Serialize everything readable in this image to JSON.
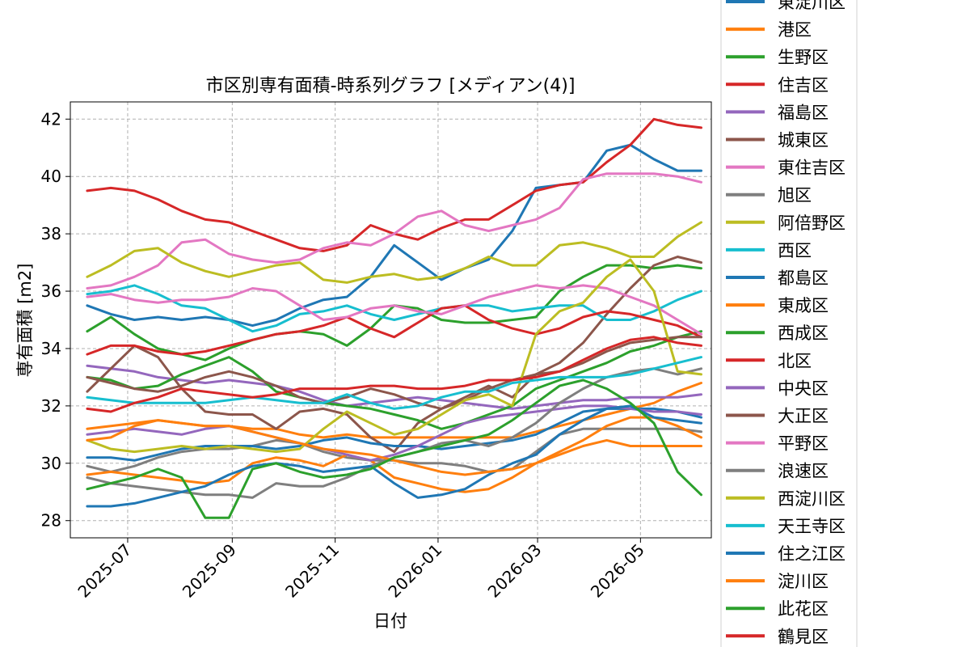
{
  "chart_data": {
    "type": "line",
    "title": "市区別専有面積-時系列グラフ [メディアン(4)]",
    "xlabel": "日付",
    "ylabel": "専有面積 [m2]",
    "ylim": [
      27.4,
      42.6
    ],
    "xlim": [
      "2025-05-28",
      "2026-06-12"
    ],
    "yticks": [
      28,
      30,
      32,
      34,
      36,
      38,
      40,
      42
    ],
    "xticks": [
      "2025-07",
      "2025-09",
      "2025-11",
      "2026-01",
      "2026-03",
      "2026-05"
    ],
    "grid": true,
    "legend_position": "right-outside",
    "x": [
      "2025-06-07",
      "2025-06-21",
      "2025-07-05",
      "2025-07-19",
      "2025-08-02",
      "2025-08-16",
      "2025-08-30",
      "2025-09-13",
      "2025-09-27",
      "2025-10-11",
      "2025-10-25",
      "2025-11-08",
      "2025-11-22",
      "2025-12-06",
      "2025-12-20",
      "2026-01-03",
      "2026-01-17",
      "2026-01-31",
      "2026-02-14",
      "2026-02-28",
      "2026-03-14",
      "2026-03-28",
      "2026-04-11",
      "2026-04-25",
      "2026-05-09",
      "2026-05-23",
      "2026-06-06"
    ],
    "series": [
      {
        "name": "東淀川区",
        "color": "#1f77b4",
        "values": [
          35.5,
          35.2,
          35.0,
          35.1,
          35.0,
          35.1,
          35.0,
          34.8,
          35.0,
          35.4,
          35.7,
          35.8,
          36.5,
          37.6,
          37.0,
          36.4,
          36.8,
          37.1,
          38.1,
          39.6,
          39.7,
          39.8,
          40.9,
          41.1,
          40.6,
          40.2,
          40.2
        ]
      },
      {
        "name": "港区",
        "color": "#ff7f0e",
        "values": [
          31.2,
          31.3,
          31.4,
          31.5,
          31.4,
          31.3,
          31.3,
          31.2,
          31.2,
          31.0,
          30.9,
          31.0,
          30.9,
          30.9,
          30.9,
          30.9,
          30.9,
          30.9,
          30.9,
          31.1,
          31.3,
          31.5,
          31.7,
          31.9,
          32.1,
          32.5,
          32.8
        ]
      },
      {
        "name": "生野区",
        "color": "#2ca02c",
        "values": [
          34.6,
          35.1,
          34.5,
          34.0,
          33.8,
          33.6,
          34.0,
          34.3,
          34.5,
          34.6,
          34.5,
          34.1,
          34.7,
          35.5,
          35.4,
          35.0,
          34.9,
          34.9,
          35.0,
          35.1,
          36.0,
          36.5,
          36.9,
          36.9,
          36.8,
          36.9,
          36.8
        ]
      },
      {
        "name": "住吉区",
        "color": "#d62728",
        "values": [
          39.5,
          39.6,
          39.5,
          39.2,
          38.8,
          38.5,
          38.4,
          38.1,
          37.8,
          37.5,
          37.4,
          37.6,
          38.3,
          38.0,
          37.8,
          38.2,
          38.5,
          38.5,
          39.0,
          39.5,
          39.7,
          39.8,
          40.5,
          41.1,
          42.0,
          41.8,
          41.7
        ]
      },
      {
        "name": "福島区",
        "color": "#9467bd",
        "values": [
          33.4,
          33.3,
          33.2,
          33.0,
          32.9,
          32.8,
          32.9,
          32.8,
          32.7,
          32.5,
          32.2,
          32.0,
          32.1,
          32.2,
          32.3,
          32.2,
          32.1,
          32.0,
          31.9,
          32.0,
          32.1,
          32.2,
          32.2,
          32.3,
          32.3,
          32.3,
          32.4
        ]
      },
      {
        "name": "城東区",
        "color": "#8c564b",
        "values": [
          32.5,
          33.3,
          34.1,
          33.7,
          32.6,
          31.8,
          31.7,
          31.7,
          31.2,
          31.8,
          31.9,
          31.7,
          30.9,
          30.4,
          31.4,
          31.9,
          32.3,
          32.7,
          32.3,
          33.1,
          33.5,
          34.2,
          35.2,
          36.1,
          36.9,
          37.2,
          37.0
        ]
      },
      {
        "name": "東住吉区",
        "color": "#e377c2",
        "values": [
          36.1,
          36.2,
          36.5,
          36.9,
          37.7,
          37.8,
          37.3,
          37.1,
          37.0,
          37.1,
          37.5,
          37.7,
          37.6,
          38.0,
          38.6,
          38.8,
          38.3,
          38.1,
          38.3,
          38.5,
          38.9,
          39.9,
          40.1,
          40.1,
          40.1,
          40.0,
          39.8
        ]
      },
      {
        "name": "旭区",
        "color": "#7f7f7f",
        "values": [
          29.9,
          29.7,
          29.9,
          30.2,
          30.4,
          30.5,
          30.5,
          30.6,
          30.8,
          30.7,
          30.4,
          30.2,
          30.1,
          30.1,
          30.0,
          30.0,
          29.9,
          29.7,
          29.8,
          30.4,
          31.0,
          31.2,
          31.2,
          31.2,
          31.2,
          31.2,
          31.1
        ]
      },
      {
        "name": "阿倍野区",
        "color": "#bcbd22",
        "values": [
          36.5,
          36.9,
          37.4,
          37.5,
          37.0,
          36.7,
          36.5,
          36.7,
          36.9,
          37.0,
          36.4,
          36.3,
          36.5,
          36.6,
          36.4,
          36.5,
          36.8,
          37.2,
          36.9,
          36.9,
          37.6,
          37.7,
          37.5,
          37.2,
          37.2,
          37.9,
          38.4
        ]
      },
      {
        "name": "西区",
        "color": "#17becf",
        "values": [
          35.9,
          36.0,
          36.2,
          35.9,
          35.5,
          35.4,
          35.0,
          34.6,
          34.8,
          35.2,
          35.3,
          35.5,
          35.2,
          35.0,
          35.2,
          35.4,
          35.5,
          35.5,
          35.3,
          35.4,
          35.5,
          35.5,
          35.0,
          35.0,
          35.3,
          35.7,
          36.0
        ]
      },
      {
        "name": "都島区",
        "color": "#1f77b4",
        "values": [
          30.2,
          30.2,
          30.1,
          30.3,
          30.5,
          30.6,
          30.6,
          30.6,
          30.5,
          30.6,
          30.8,
          30.9,
          30.7,
          30.6,
          30.6,
          30.5,
          30.6,
          30.7,
          30.8,
          31.0,
          31.4,
          31.8,
          31.9,
          31.9,
          31.9,
          31.8,
          31.6
        ]
      },
      {
        "name": "東成区",
        "color": "#ff7f0e",
        "values": [
          29.6,
          29.7,
          29.6,
          29.5,
          29.4,
          29.3,
          29.4,
          30.0,
          30.2,
          30.1,
          29.9,
          30.3,
          30.1,
          29.5,
          29.3,
          29.1,
          29.0,
          29.1,
          29.5,
          30.0,
          30.4,
          30.8,
          31.3,
          31.6,
          31.6,
          31.3,
          30.9
        ]
      },
      {
        "name": "西成区",
        "color": "#2ca02c",
        "values": [
          33.0,
          32.9,
          32.6,
          32.7,
          33.1,
          33.4,
          33.7,
          33.2,
          32.5,
          32.3,
          32.1,
          32.0,
          31.9,
          31.7,
          31.5,
          31.2,
          31.4,
          31.7,
          32.0,
          32.6,
          32.9,
          33.2,
          33.5,
          33.9,
          34.1,
          34.4,
          34.6
        ]
      },
      {
        "name": "北区",
        "color": "#d62728",
        "values": [
          33.8,
          34.1,
          34.1,
          33.9,
          33.8,
          33.9,
          34.1,
          34.3,
          34.5,
          34.6,
          34.8,
          35.1,
          34.7,
          34.4,
          34.9,
          35.4,
          35.5,
          35.0,
          34.7,
          34.5,
          34.7,
          35.1,
          35.3,
          35.2,
          35.0,
          34.8,
          34.4
        ]
      },
      {
        "name": "中央区",
        "color": "#9467bd",
        "values": [
          31.0,
          31.1,
          31.2,
          31.1,
          31.0,
          31.2,
          31.3,
          31.1,
          30.9,
          30.7,
          30.5,
          30.3,
          30.1,
          30.3,
          30.6,
          31.0,
          31.4,
          31.6,
          31.7,
          31.8,
          31.9,
          32.0,
          32.0,
          31.9,
          31.8,
          31.8,
          31.7
        ]
      },
      {
        "name": "大正区",
        "color": "#8c564b",
        "values": [
          33.0,
          32.8,
          32.6,
          32.5,
          32.7,
          33.0,
          33.2,
          33.0,
          32.7,
          32.3,
          32.1,
          32.3,
          32.6,
          32.4,
          32.1,
          31.9,
          32.2,
          32.6,
          32.9,
          33.1,
          33.2,
          33.5,
          33.9,
          34.2,
          34.3,
          34.4,
          34.4
        ]
      },
      {
        "name": "平野区",
        "color": "#e377c2",
        "values": [
          35.8,
          35.9,
          35.7,
          35.6,
          35.7,
          35.7,
          35.8,
          36.1,
          36.0,
          35.5,
          35.0,
          35.1,
          35.4,
          35.5,
          35.3,
          35.2,
          35.5,
          35.8,
          36.0,
          36.2,
          36.1,
          36.2,
          36.1,
          35.8,
          35.5,
          35.0,
          34.5
        ]
      },
      {
        "name": "浪速区",
        "color": "#7f7f7f",
        "values": [
          29.5,
          29.3,
          29.2,
          29.1,
          29.0,
          28.9,
          28.9,
          28.8,
          29.3,
          29.2,
          29.2,
          29.5,
          29.9,
          30.2,
          30.4,
          30.7,
          30.8,
          30.6,
          30.9,
          31.4,
          32.1,
          32.6,
          33.0,
          33.2,
          33.3,
          33.1,
          33.3
        ]
      },
      {
        "name": "西淀川区",
        "color": "#bcbd22",
        "values": [
          30.8,
          30.5,
          30.4,
          30.5,
          30.6,
          30.5,
          30.6,
          30.5,
          30.4,
          30.5,
          31.2,
          31.8,
          31.4,
          31.0,
          31.2,
          31.7,
          32.2,
          32.4,
          32.0,
          34.5,
          35.3,
          35.6,
          36.5,
          37.1,
          36.0,
          33.2,
          33.1
        ]
      },
      {
        "name": "天王寺区",
        "color": "#17becf",
        "values": [
          32.3,
          32.2,
          32.1,
          32.1,
          32.1,
          32.1,
          32.2,
          32.3,
          32.2,
          32.1,
          32.1,
          32.4,
          32.1,
          31.9,
          32.0,
          32.3,
          32.5,
          32.5,
          32.8,
          32.9,
          33.0,
          33.0,
          33.0,
          33.1,
          33.3,
          33.5,
          33.7
        ]
      },
      {
        "name": "住之江区",
        "color": "#1f77b4",
        "values": [
          28.5,
          28.5,
          28.6,
          28.8,
          29.0,
          29.2,
          29.6,
          29.9,
          30.0,
          29.9,
          29.7,
          29.8,
          29.9,
          29.3,
          28.8,
          28.9,
          29.1,
          29.6,
          30.0,
          30.3,
          31.0,
          31.5,
          31.9,
          32.0,
          31.6,
          31.5,
          31.4
        ]
      },
      {
        "name": "淀川区",
        "color": "#ff7f0e",
        "values": [
          30.8,
          30.9,
          31.3,
          31.5,
          31.4,
          31.3,
          31.3,
          31.1,
          30.9,
          30.7,
          30.5,
          30.4,
          30.3,
          30.1,
          29.9,
          29.7,
          29.6,
          29.7,
          29.8,
          30.0,
          30.3,
          30.6,
          30.8,
          30.6,
          30.6,
          30.6,
          30.6
        ]
      },
      {
        "name": "此花区",
        "color": "#2ca02c",
        "values": [
          29.1,
          29.3,
          29.5,
          29.8,
          29.5,
          28.1,
          28.1,
          29.8,
          30.0,
          29.7,
          29.5,
          29.6,
          29.8,
          30.2,
          30.4,
          30.6,
          30.8,
          31.0,
          31.5,
          32.1,
          32.7,
          32.9,
          32.6,
          32.1,
          31.4,
          29.7,
          28.9
        ]
      },
      {
        "name": "鶴見区",
        "color": "#d62728",
        "values": [
          31.9,
          31.8,
          32.1,
          32.3,
          32.6,
          32.5,
          32.4,
          32.3,
          32.4,
          32.6,
          32.6,
          32.6,
          32.7,
          32.7,
          32.6,
          32.6,
          32.7,
          32.9,
          32.9,
          33.0,
          33.2,
          33.6,
          34.0,
          34.3,
          34.4,
          34.2,
          34.1
        ]
      }
    ]
  }
}
